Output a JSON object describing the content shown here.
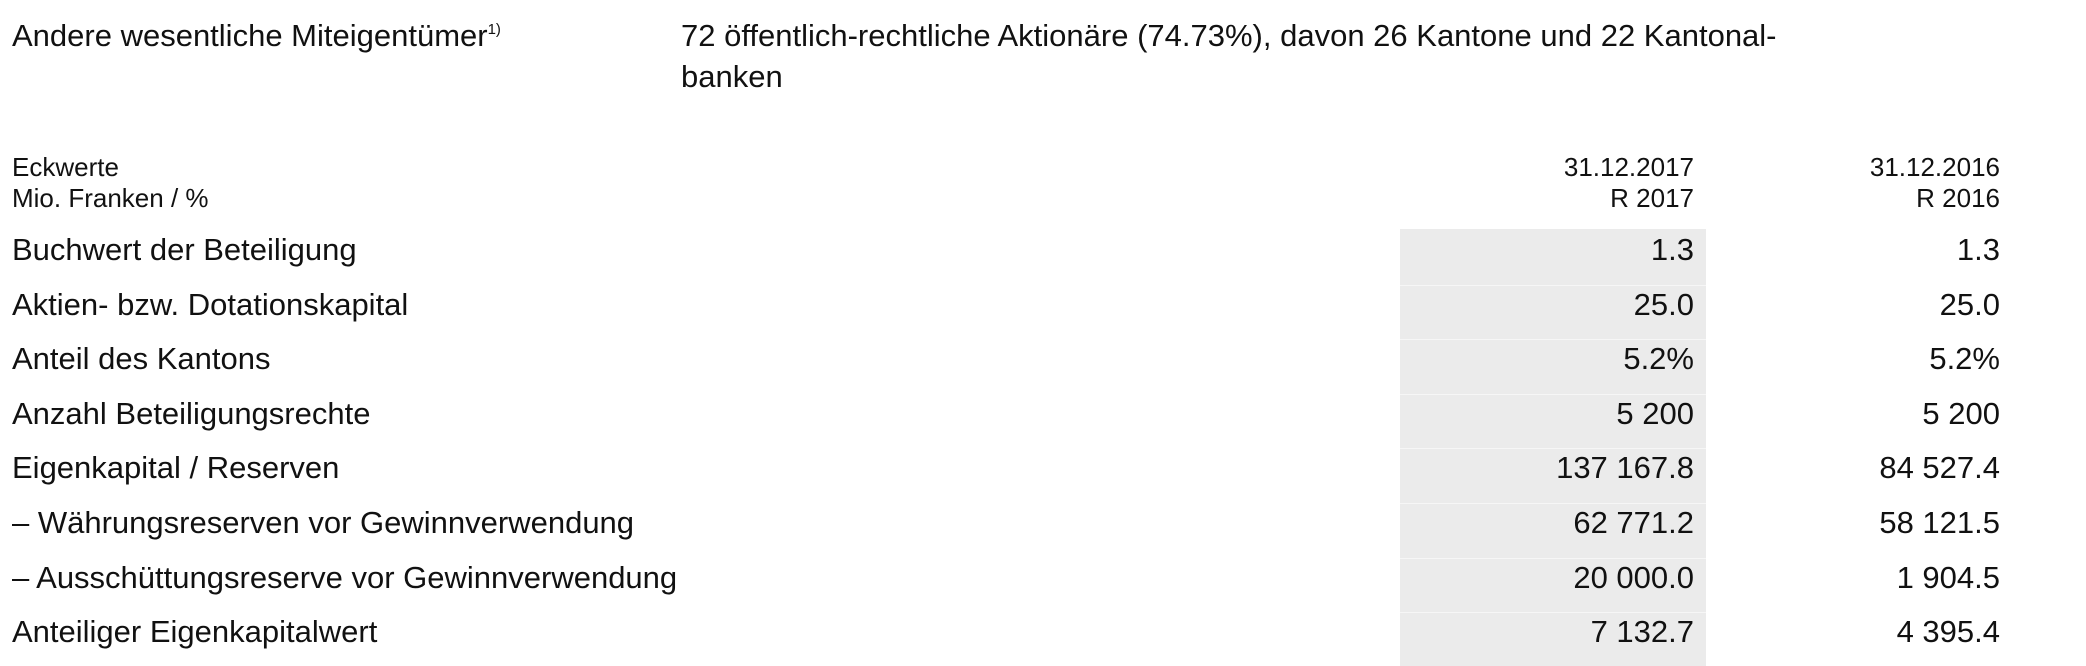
{
  "owners": {
    "label": "Andere wesentliche Miteigentümer",
    "footnote": "1)",
    "value_line1": "72 öffentlich-rechtliche Aktionäre (74.73%), davon 26 Kantone und 22 Kantonal-",
    "value_line2": "banken"
  },
  "table": {
    "header": {
      "label_line1": "Eckwerte",
      "label_line2": "Mio. Franken / %",
      "col1_line1": "31.12.2017",
      "col1_line2": "R 2017",
      "col2_line1": "31.12.2016",
      "col2_line2": "R 2016"
    },
    "highlight_color": "#ebebeb",
    "rows": [
      {
        "label": "Buchwert der Beteiligung",
        "v2017": "1.3",
        "v2016": "1.3"
      },
      {
        "label": "Aktien- bzw. Dotationskapital",
        "v2017": "25.0",
        "v2016": "25.0"
      },
      {
        "label": "Anteil des Kantons",
        "v2017": "5.2%",
        "v2016": "5.2%"
      },
      {
        "label": "Anzahl Beteiligungsrechte",
        "v2017": "5 200",
        "v2016": "5 200"
      },
      {
        "label": "Eigenkapital / Reserven",
        "v2017": "137 167.8",
        "v2016": "84 527.4"
      },
      {
        "label": "– Währungsreserven vor Gewinnverwendung",
        "v2017": "62 771.2",
        "v2016": "58 121.5"
      },
      {
        "label": "– Ausschüttungsreserve vor Gewinnverwendung",
        "v2017": "20 000.0",
        "v2016": "1 904.5"
      },
      {
        "label": "Anteiliger Eigenkapitalwert",
        "v2017": "7 132.7",
        "v2016": "4 395.4"
      }
    ]
  }
}
